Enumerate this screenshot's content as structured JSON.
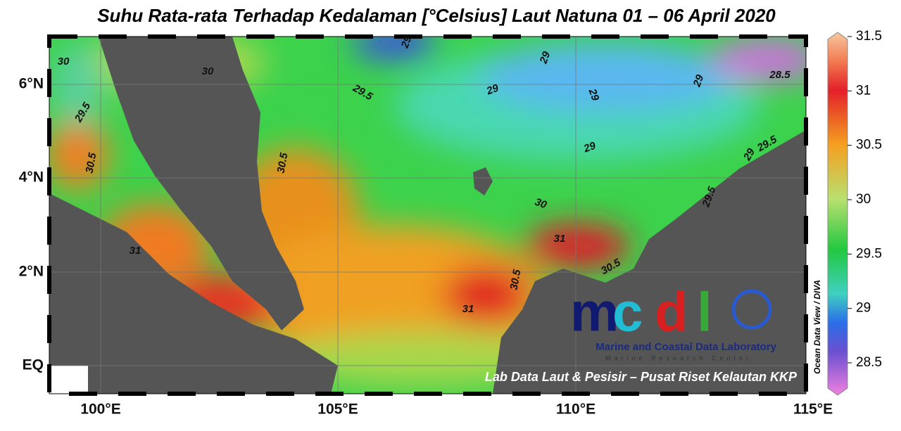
{
  "title": "Suhu Rata-rata Terhadap Kedalaman [°Celsius] Laut Natuna 01 – 06 April 2020",
  "lat_labels": [
    "6°N",
    "4°N",
    "2°N",
    "EQ"
  ],
  "lon_labels": [
    "100°E",
    "105°E",
    "110°E",
    "115°E"
  ],
  "colorbar": {
    "ticks": [
      31.5,
      31,
      30.5,
      30,
      29.5,
      29,
      28.5
    ]
  },
  "contour_labels": [
    "30",
    "30",
    "29.5",
    "29.5",
    "29",
    "29",
    "29",
    "29",
    "29",
    "29",
    "28.5",
    "30.5",
    "30.5",
    "30",
    "31",
    "30.5",
    "31",
    "29.5",
    "29.5",
    "29",
    "30.5",
    "31"
  ],
  "logo": {
    "letters": [
      "m",
      "c",
      "d",
      "l"
    ],
    "name": "Marine and Coastal Data Laboratory",
    "org": "Marine Research Center"
  },
  "credit": "Lab Data Laut & Pesisir – Pusat Riset Kelautan KKP",
  "source": "Ocean Data View / DIVA"
}
